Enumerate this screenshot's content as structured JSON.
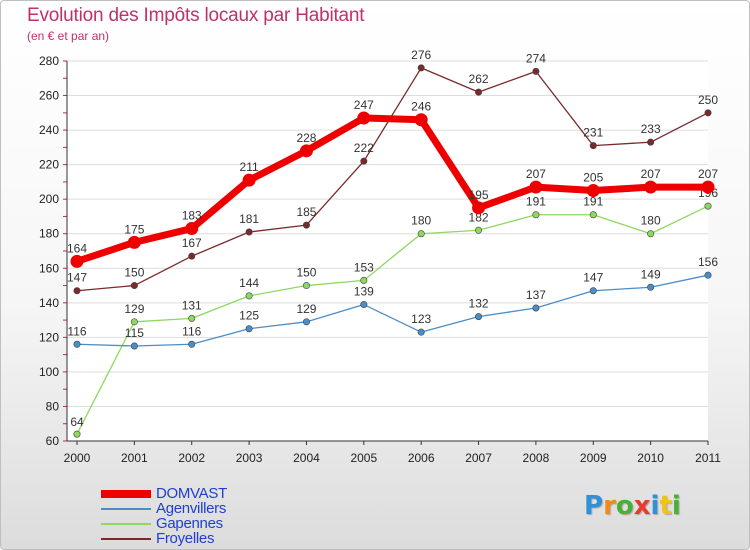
{
  "header": {
    "title": "Evolution des Impôts locaux par Habitant",
    "subtitle": "(en € et par an)"
  },
  "brand": {
    "text": "Proxiti",
    "letter_colors": [
      "#2f8fd8",
      "#f28a1a",
      "#4caf35",
      "#e63c2f",
      "#2f8fd8",
      "#f2c21a",
      "#4caf35"
    ]
  },
  "chart_data": {
    "type": "line",
    "title": "Evolution des Impôts locaux par Habitant",
    "subtitle": "(en € et par an)",
    "xlabel": "",
    "ylabel": "",
    "x": [
      "2000",
      "2001",
      "2002",
      "2003",
      "2004",
      "2005",
      "2006",
      "2007",
      "2008",
      "2009",
      "2010",
      "2011"
    ],
    "yticks": [
      60,
      80,
      100,
      120,
      140,
      160,
      180,
      200,
      220,
      240,
      260,
      280
    ],
    "ylim": [
      60,
      280
    ],
    "grid": "horizontal",
    "legend_position": "bottom-left",
    "series": [
      {
        "name": "DOMVAST",
        "color": "#ee0000",
        "values": [
          164,
          175,
          183,
          211,
          228,
          247,
          246,
          195,
          207,
          205,
          207,
          207
        ]
      },
      {
        "name": "Agenvillers",
        "color": "#4a8ec8",
        "values": [
          116,
          115,
          116,
          125,
          129,
          139,
          123,
          132,
          137,
          147,
          149,
          156
        ]
      },
      {
        "name": "Gapennes",
        "color": "#8ed860",
        "values": [
          64,
          129,
          131,
          144,
          150,
          153,
          180,
          182,
          191,
          191,
          180,
          196
        ]
      },
      {
        "name": "Froyelles",
        "color": "#7a2a2a",
        "values": [
          147,
          150,
          167,
          181,
          185,
          222,
          276,
          262,
          274,
          231,
          233,
          250
        ]
      }
    ]
  }
}
